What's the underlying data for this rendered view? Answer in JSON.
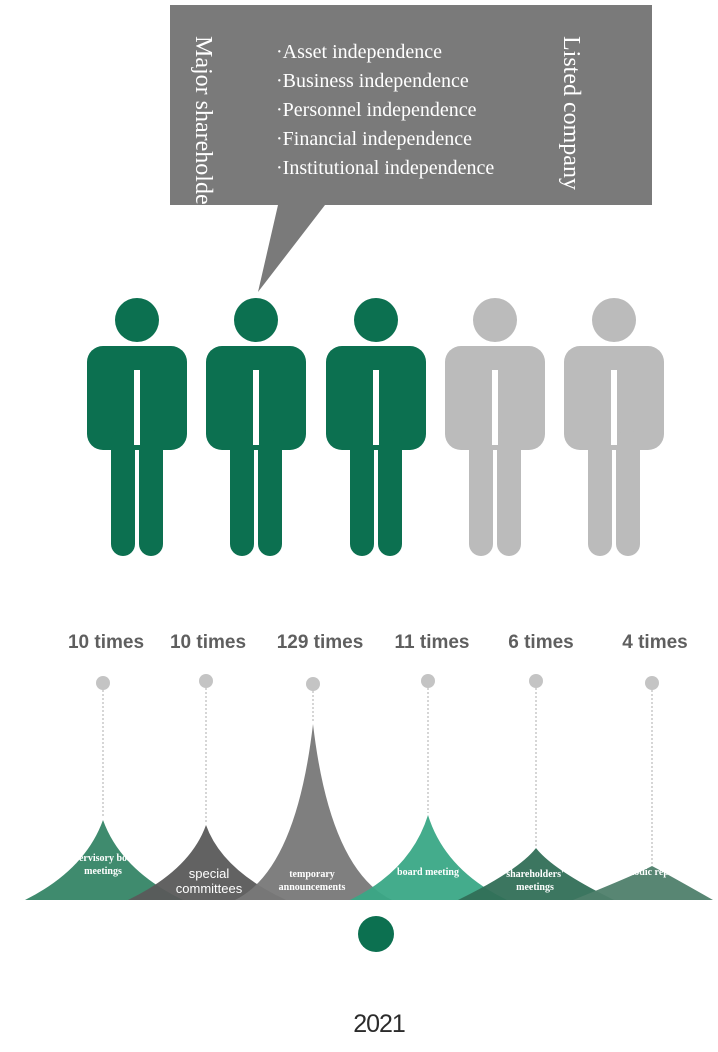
{
  "colors": {
    "green": "#0c7050",
    "gray": "#bbbbbb",
    "callout": "#7a7a7a"
  },
  "callout": {
    "left_title": "Major shareholder",
    "right_title": "Listed company",
    "items": [
      "·Asset independence",
      "·Business independence",
      "·Personnel independence",
      "·Financial independence",
      "·Institutional independence"
    ]
  },
  "people": {
    "total": 5,
    "highlighted": 3
  },
  "meetings": [
    {
      "label": "supervisory board meetings",
      "count": "10 times",
      "color": "#3f8b6e"
    },
    {
      "label": "special committees",
      "count": "10 times",
      "color": "#5a5a5a"
    },
    {
      "label": "temporary announcements",
      "count": "129 times",
      "color": "#787878"
    },
    {
      "label": "board meeting",
      "count": "11 times",
      "color": "#3aa886"
    },
    {
      "label": "shareholders' meetings",
      "count": "6 times",
      "color": "#316f57"
    },
    {
      "label": "Periodic reports",
      "count": "4 times",
      "color": "#4f7f6b"
    }
  ],
  "year": "2021"
}
